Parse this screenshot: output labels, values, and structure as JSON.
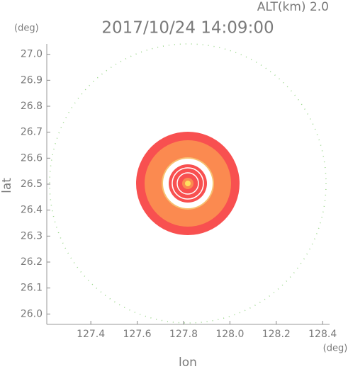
{
  "chart_data": {
    "type": "map",
    "title": "2017/10/24 14:09:00",
    "altitude_label": "ALT(km)  2.0",
    "y_unit": "(deg)",
    "x_unit": "(deg)",
    "x_label": "lon",
    "y_label": "lat",
    "xlim": [
      127.21,
      128.43
    ],
    "ylim": [
      25.96,
      27.04
    ],
    "xticks": [
      127.4,
      127.6,
      127.8,
      {
        "value": 128,
        "label": "128.0"
      },
      128.2,
      128.4
    ],
    "yticks": [
      {
        "value": 26,
        "label": "26.0"
      },
      26.1,
      26.2,
      26.3,
      26.4,
      26.5,
      26.6,
      26.7,
      26.8,
      26.9,
      {
        "value": 27,
        "label": "27.0"
      }
    ]
  }
}
